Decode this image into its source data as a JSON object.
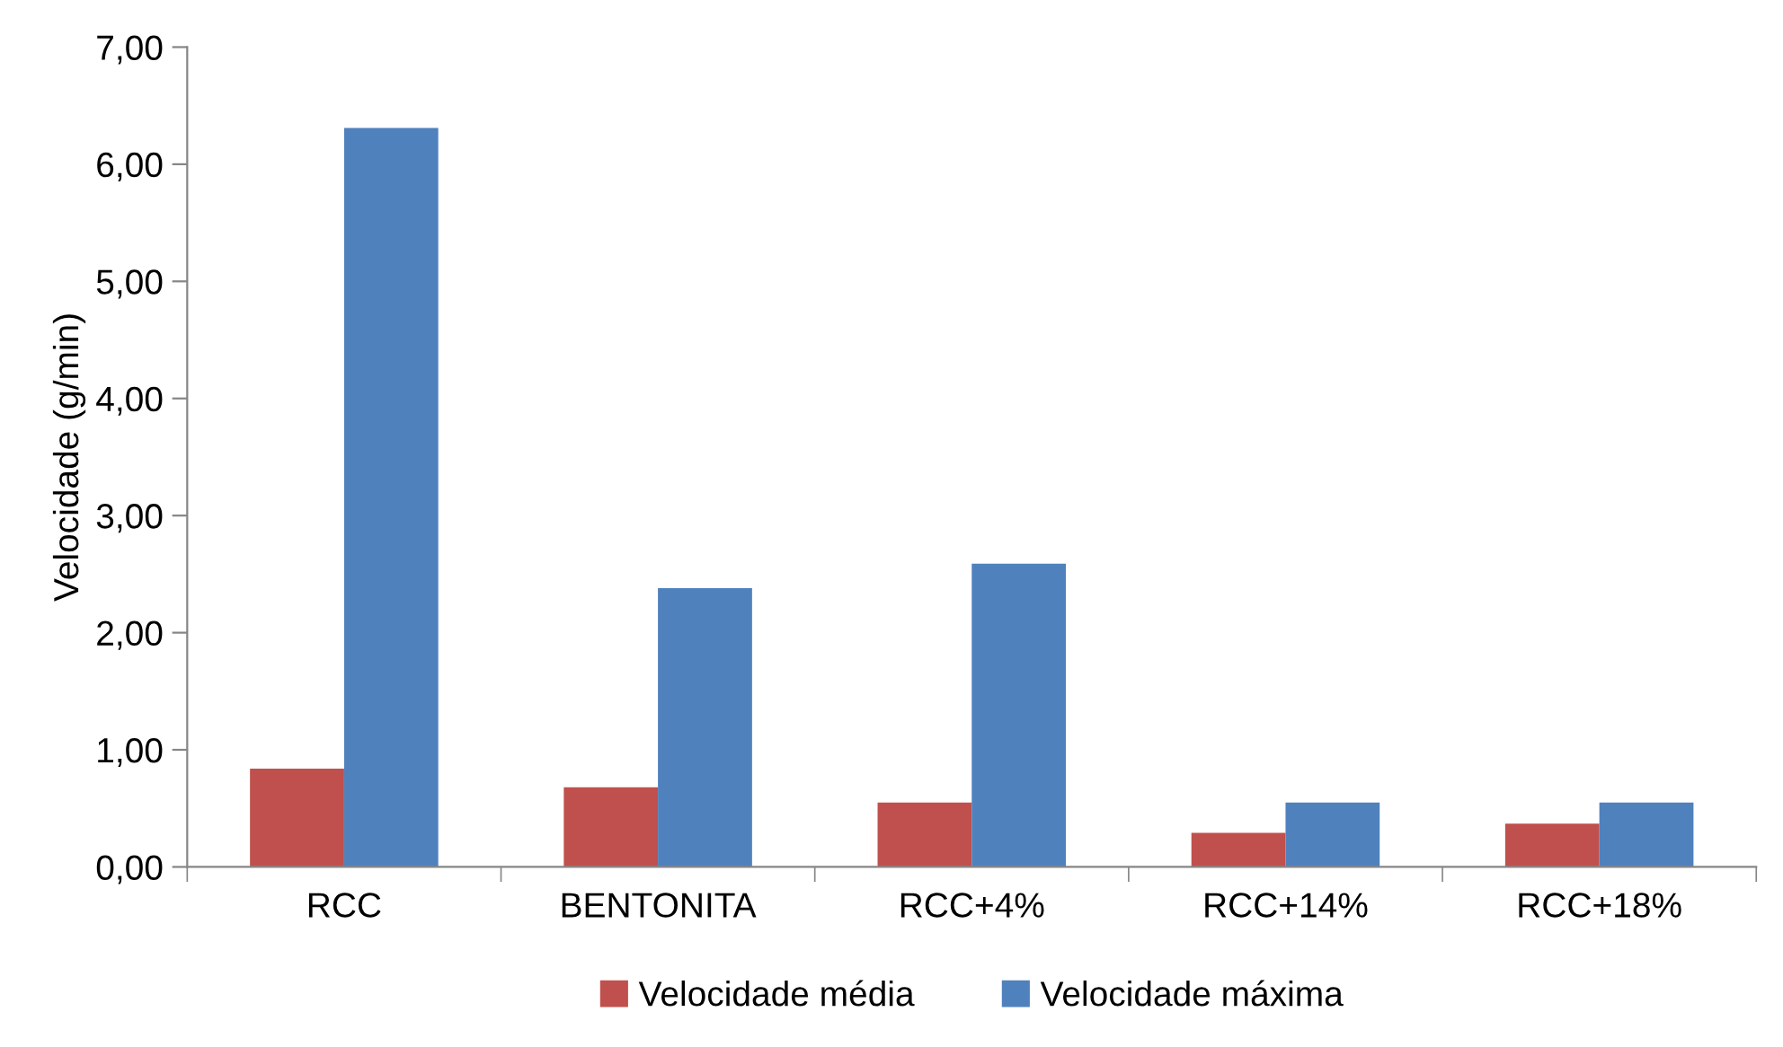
{
  "chart_data": {
    "type": "bar",
    "ylabel": "Velocidade (g/min)",
    "categories": [
      "RCC",
      "BENTONITA",
      "RCC+4%",
      "RCC+14%",
      "RCC+18%"
    ],
    "series": [
      {
        "name": "Velocidade média",
        "color": "#c0504d",
        "values": [
          0.84,
          0.68,
          0.55,
          0.29,
          0.37
        ]
      },
      {
        "name": "Velocidade máxima",
        "color": "#4f81bd",
        "values": [
          6.31,
          2.38,
          2.59,
          0.55,
          0.55
        ]
      }
    ],
    "ylim": [
      0,
      7
    ],
    "yticks": [
      {
        "value": 0,
        "label": "0,00"
      },
      {
        "value": 1,
        "label": "1,00"
      },
      {
        "value": 2,
        "label": "2,00"
      },
      {
        "value": 3,
        "label": "3,00"
      },
      {
        "value": 4,
        "label": "4,00"
      },
      {
        "value": 5,
        "label": "5,00"
      },
      {
        "value": 6,
        "label": "6,00"
      },
      {
        "value": 7,
        "label": "7,00"
      }
    ],
    "grid": false,
    "legend": "bottom"
  }
}
